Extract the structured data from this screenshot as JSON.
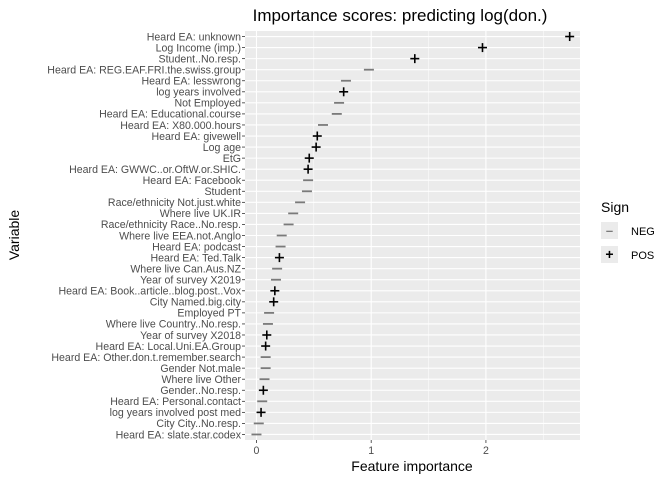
{
  "chart_data": {
    "type": "scatter",
    "title": "Importance scores: predicting log(don.)",
    "xlabel": "Feature importance",
    "ylabel": "Variable",
    "xlim": [
      -0.1,
      2.82
    ],
    "xticks": [
      0,
      1,
      2
    ],
    "grid": true,
    "legend": {
      "title": "Sign",
      "position": "right",
      "entries": [
        {
          "label": "NEG",
          "glyph": "–",
          "color": "#7a7a7a"
        },
        {
          "label": "POS",
          "glyph": "+",
          "color": "#000000"
        }
      ]
    },
    "colors": {
      "panel": "#ebebeb",
      "grid": "#ffffff",
      "neg": "#7a7a7a",
      "pos": "#000000"
    },
    "points": [
      {
        "variable": "Heard EA: unknown",
        "value": 2.73,
        "sign": "POS"
      },
      {
        "variable": "Log Income (imp.)",
        "value": 1.97,
        "sign": "POS"
      },
      {
        "variable": "Student..No.resp.",
        "value": 1.38,
        "sign": "POS"
      },
      {
        "variable": "Heard EA: REG.EAF.FRI.the.swiss.group",
        "value": 0.98,
        "sign": "NEG"
      },
      {
        "variable": "Heard EA: lesswrong",
        "value": 0.78,
        "sign": "NEG"
      },
      {
        "variable": "log years involved",
        "value": 0.76,
        "sign": "POS"
      },
      {
        "variable": "Not Employed",
        "value": 0.72,
        "sign": "NEG"
      },
      {
        "variable": "Heard EA: Educational.course",
        "value": 0.7,
        "sign": "NEG"
      },
      {
        "variable": "Heard EA: X80.000.hours",
        "value": 0.58,
        "sign": "NEG"
      },
      {
        "variable": "Heard EA: givewell",
        "value": 0.53,
        "sign": "POS"
      },
      {
        "variable": "Log age",
        "value": 0.52,
        "sign": "POS"
      },
      {
        "variable": "EtG",
        "value": 0.46,
        "sign": "POS"
      },
      {
        "variable": "Heard EA: GWWC..or.OftW.or.SHIC.",
        "value": 0.45,
        "sign": "POS"
      },
      {
        "variable": "Heard EA: Facebook",
        "value": 0.45,
        "sign": "NEG"
      },
      {
        "variable": "Student",
        "value": 0.44,
        "sign": "NEG"
      },
      {
        "variable": "Race/ethnicity Not.just.white",
        "value": 0.38,
        "sign": "NEG"
      },
      {
        "variable": "Where live UK.IR",
        "value": 0.32,
        "sign": "NEG"
      },
      {
        "variable": "Race/ethnicity Race..No.resp.",
        "value": 0.28,
        "sign": "NEG"
      },
      {
        "variable": "Where live EEA.not.Anglo",
        "value": 0.22,
        "sign": "NEG"
      },
      {
        "variable": "Heard EA: podcast",
        "value": 0.21,
        "sign": "NEG"
      },
      {
        "variable": "Heard EA: Ted.Talk",
        "value": 0.2,
        "sign": "POS"
      },
      {
        "variable": "Where live Can.Aus.NZ",
        "value": 0.18,
        "sign": "NEG"
      },
      {
        "variable": "Year of survey X2019",
        "value": 0.17,
        "sign": "NEG"
      },
      {
        "variable": "Heard EA: Book..article..blog.post..Vox",
        "value": 0.16,
        "sign": "POS"
      },
      {
        "variable": "City Named.big.city",
        "value": 0.15,
        "sign": "POS"
      },
      {
        "variable": "Employed PT",
        "value": 0.11,
        "sign": "NEG"
      },
      {
        "variable": "Where live Country..No.resp.",
        "value": 0.1,
        "sign": "NEG"
      },
      {
        "variable": "Year of survey X2018",
        "value": 0.09,
        "sign": "POS"
      },
      {
        "variable": "Heard EA: Local.Uni.EA.Group",
        "value": 0.08,
        "sign": "POS"
      },
      {
        "variable": "Heard EA: Other.don.t.remember.search",
        "value": 0.08,
        "sign": "NEG"
      },
      {
        "variable": "Gender Not.male",
        "value": 0.08,
        "sign": "NEG"
      },
      {
        "variable": "Where live Other",
        "value": 0.07,
        "sign": "NEG"
      },
      {
        "variable": "Gender..No.resp.",
        "value": 0.06,
        "sign": "POS"
      },
      {
        "variable": "Heard EA: Personal.contact",
        "value": 0.05,
        "sign": "NEG"
      },
      {
        "variable": "log years involved post med",
        "value": 0.04,
        "sign": "POS"
      },
      {
        "variable": "City City..No.resp.",
        "value": 0.02,
        "sign": "NEG"
      },
      {
        "variable": "Heard EA: slate.star.codex",
        "value": 0.0,
        "sign": "NEG"
      }
    ]
  }
}
